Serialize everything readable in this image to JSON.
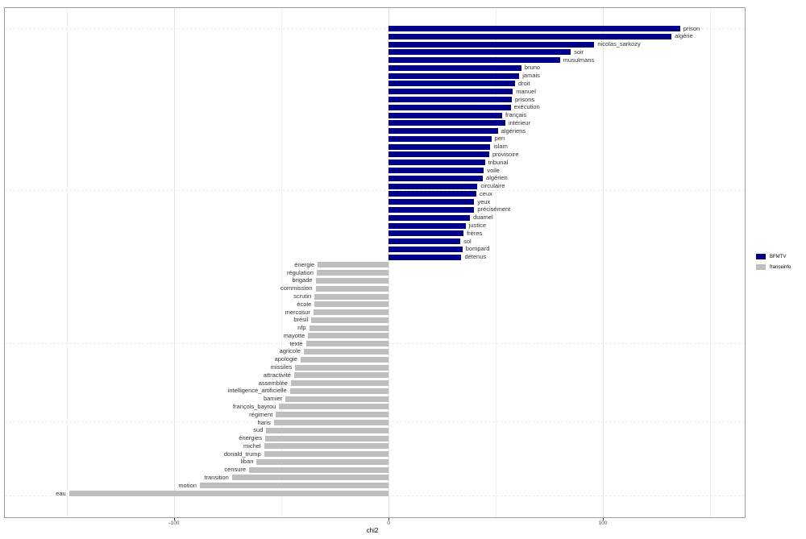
{
  "chart_data": {
    "type": "bar",
    "orientation": "horizontal",
    "title": "",
    "xlabel": "chi2",
    "ylabel": "",
    "x_ticks": [
      -100,
      0,
      100
    ],
    "x_tick_labels": [
      "-100",
      "0",
      "100"
    ],
    "xlim": [
      -178,
      166
    ],
    "grid_lines_x": [
      -150,
      -100,
      -50,
      0,
      50,
      100,
      150
    ],
    "legend_position": "right",
    "legend": [
      {
        "name": "BFMTV",
        "color": "#00008B"
      },
      {
        "name": "franceinfo",
        "color": "#BEBEBE"
      }
    ],
    "bars": [
      {
        "label": "prison",
        "value": 136,
        "group": "BFMTV"
      },
      {
        "label": "algérie",
        "value": 132,
        "group": "BFMTV"
      },
      {
        "label": "nicolas_sarkozy",
        "value": 96,
        "group": "BFMTV"
      },
      {
        "label": "soir",
        "value": 85,
        "group": "BFMTV"
      },
      {
        "label": "musulmans",
        "value": 80,
        "group": "BFMTV"
      },
      {
        "label": "bruno",
        "value": 62,
        "group": "BFMTV"
      },
      {
        "label": "jamais",
        "value": 61,
        "group": "BFMTV"
      },
      {
        "label": "droit",
        "value": 59,
        "group": "BFMTV"
      },
      {
        "label": "manuel",
        "value": 58,
        "group": "BFMTV"
      },
      {
        "label": "prisons",
        "value": 57.5,
        "group": "BFMTV"
      },
      {
        "label": "exécution",
        "value": 57,
        "group": "BFMTV"
      },
      {
        "label": "français",
        "value": 53,
        "group": "BFMTV"
      },
      {
        "label": "intérieur",
        "value": 54.5,
        "group": "BFMTV"
      },
      {
        "label": "algériens",
        "value": 51,
        "group": "BFMTV"
      },
      {
        "label": "pen",
        "value": 48,
        "group": "BFMTV"
      },
      {
        "label": "islam",
        "value": 47.5,
        "group": "BFMTV"
      },
      {
        "label": "provisoire",
        "value": 47,
        "group": "BFMTV"
      },
      {
        "label": "tribunal",
        "value": 45,
        "group": "BFMTV"
      },
      {
        "label": "voile",
        "value": 44.5,
        "group": "BFMTV"
      },
      {
        "label": "algérien",
        "value": 44,
        "group": "BFMTV"
      },
      {
        "label": "circulaire",
        "value": 41.5,
        "group": "BFMTV"
      },
      {
        "label": "ceux",
        "value": 41,
        "group": "BFMTV"
      },
      {
        "label": "yeux",
        "value": 40,
        "group": "BFMTV"
      },
      {
        "label": "précisément",
        "value": 40,
        "group": "BFMTV"
      },
      {
        "label": "duamel",
        "value": 38,
        "group": "BFMTV"
      },
      {
        "label": "justice",
        "value": 36,
        "group": "BFMTV"
      },
      {
        "label": "frères",
        "value": 35,
        "group": "BFMTV"
      },
      {
        "label": "sol",
        "value": 33.5,
        "group": "BFMTV"
      },
      {
        "label": "bompard",
        "value": 34.5,
        "group": "BFMTV"
      },
      {
        "label": "détenus",
        "value": 34,
        "group": "BFMTV"
      },
      {
        "label": "énergie",
        "value": -33,
        "group": "franceinfo"
      },
      {
        "label": "régulation",
        "value": -33.5,
        "group": "franceinfo"
      },
      {
        "label": "brigade",
        "value": -34,
        "group": "franceinfo"
      },
      {
        "label": "commission",
        "value": -34,
        "group": "franceinfo"
      },
      {
        "label": "scrutin",
        "value": -34.5,
        "group": "franceinfo"
      },
      {
        "label": "école",
        "value": -34.5,
        "group": "franceinfo"
      },
      {
        "label": "mercosur",
        "value": -35,
        "group": "franceinfo"
      },
      {
        "label": "brésil",
        "value": -36,
        "group": "franceinfo"
      },
      {
        "label": "nfp",
        "value": -37,
        "group": "franceinfo"
      },
      {
        "label": "mayotte",
        "value": -37.5,
        "group": "franceinfo"
      },
      {
        "label": "texte",
        "value": -38.5,
        "group": "franceinfo"
      },
      {
        "label": "agricole",
        "value": -39.5,
        "group": "franceinfo"
      },
      {
        "label": "apologie",
        "value": -41,
        "group": "franceinfo"
      },
      {
        "label": "missiles",
        "value": -43.5,
        "group": "franceinfo"
      },
      {
        "label": "attractivité",
        "value": -44,
        "group": "franceinfo"
      },
      {
        "label": "assemblée",
        "value": -45.5,
        "group": "franceinfo"
      },
      {
        "label": "intelligence_artificielle",
        "value": -46,
        "group": "franceinfo"
      },
      {
        "label": "barnier",
        "value": -48,
        "group": "franceinfo"
      },
      {
        "label": "françois_bayrou",
        "value": -51,
        "group": "franceinfo"
      },
      {
        "label": "régiment",
        "value": -52.5,
        "group": "franceinfo"
      },
      {
        "label": "haris",
        "value": -53.5,
        "group": "franceinfo"
      },
      {
        "label": "sud",
        "value": -57,
        "group": "franceinfo"
      },
      {
        "label": "énergies",
        "value": -57.5,
        "group": "franceinfo"
      },
      {
        "label": "michel",
        "value": -58,
        "group": "franceinfo"
      },
      {
        "label": "donald_trump",
        "value": -58,
        "group": "franceinfo"
      },
      {
        "label": "liban",
        "value": -61.5,
        "group": "franceinfo"
      },
      {
        "label": "censure",
        "value": -65,
        "group": "franceinfo"
      },
      {
        "label": "transition",
        "value": -73,
        "group": "franceinfo"
      },
      {
        "label": "motion",
        "value": -88,
        "group": "franceinfo"
      },
      {
        "label": "eau",
        "value": -149,
        "group": "franceinfo"
      }
    ]
  }
}
